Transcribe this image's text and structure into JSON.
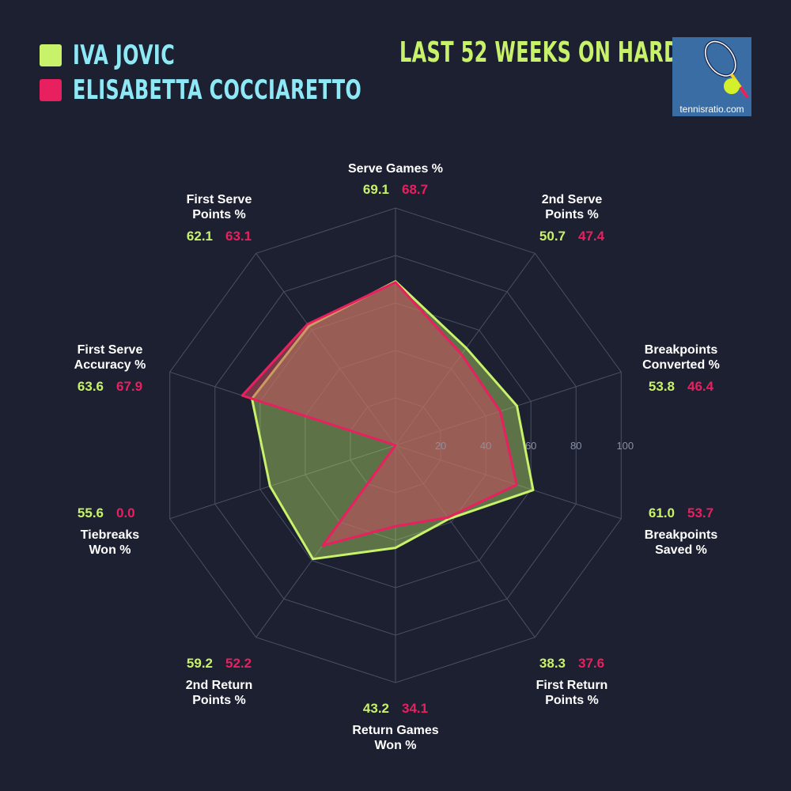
{
  "players": [
    {
      "name": "IVA JOVIC",
      "color": "#c8f26a"
    },
    {
      "name": "ELISABETTA COCCIARETTO",
      "color": "#e8205f"
    }
  ],
  "period_title": "LAST 52 WEEKS ON HARD",
  "logo": {
    "text": "tennisratio.com",
    "icon": "tennis-racket-ball-icon"
  },
  "chart_data": {
    "type": "radar",
    "axes": [
      {
        "label": [
          "Serve Games %"
        ]
      },
      {
        "label": [
          "2nd Serve",
          "Points %"
        ]
      },
      {
        "label": [
          "Breakpoints",
          "Converted %"
        ]
      },
      {
        "label": [
          "Breakpoints",
          "Saved %"
        ]
      },
      {
        "label": [
          "First Return",
          "Points %"
        ]
      },
      {
        "label": [
          "Return Games",
          "Won %"
        ]
      },
      {
        "label": [
          "2nd Return",
          "Points %"
        ]
      },
      {
        "label": [
          "Tiebreaks",
          "Won %"
        ]
      },
      {
        "label": [
          "First Serve",
          "Accuracy %"
        ]
      },
      {
        "label": [
          "First Serve",
          "Points %"
        ]
      }
    ],
    "series": [
      {
        "name": "IVA JOVIC",
        "values": [
          69.1,
          50.7,
          53.8,
          61.0,
          38.3,
          43.2,
          59.2,
          55.6,
          63.6,
          62.1
        ],
        "labels": [
          "69.1",
          "50.7",
          "53.8",
          "61.0",
          "38.3",
          "43.2",
          "59.2",
          "55.6",
          "63.6",
          "62.1"
        ]
      },
      {
        "name": "ELISABETTA COCCIARETTO",
        "values": [
          68.7,
          47.4,
          46.4,
          53.7,
          37.6,
          34.1,
          52.2,
          0.0,
          67.9,
          63.1
        ],
        "labels": [
          "68.7",
          "47.4",
          "46.4",
          "53.7",
          "37.6",
          "34.1",
          "52.2",
          "0.0",
          "67.9",
          "63.1"
        ]
      }
    ],
    "rlim": [
      0,
      100
    ],
    "rticks": [
      20,
      40,
      60,
      80,
      100
    ],
    "rtick_labels": [
      "20",
      "40",
      "60",
      "80",
      "100"
    ]
  }
}
